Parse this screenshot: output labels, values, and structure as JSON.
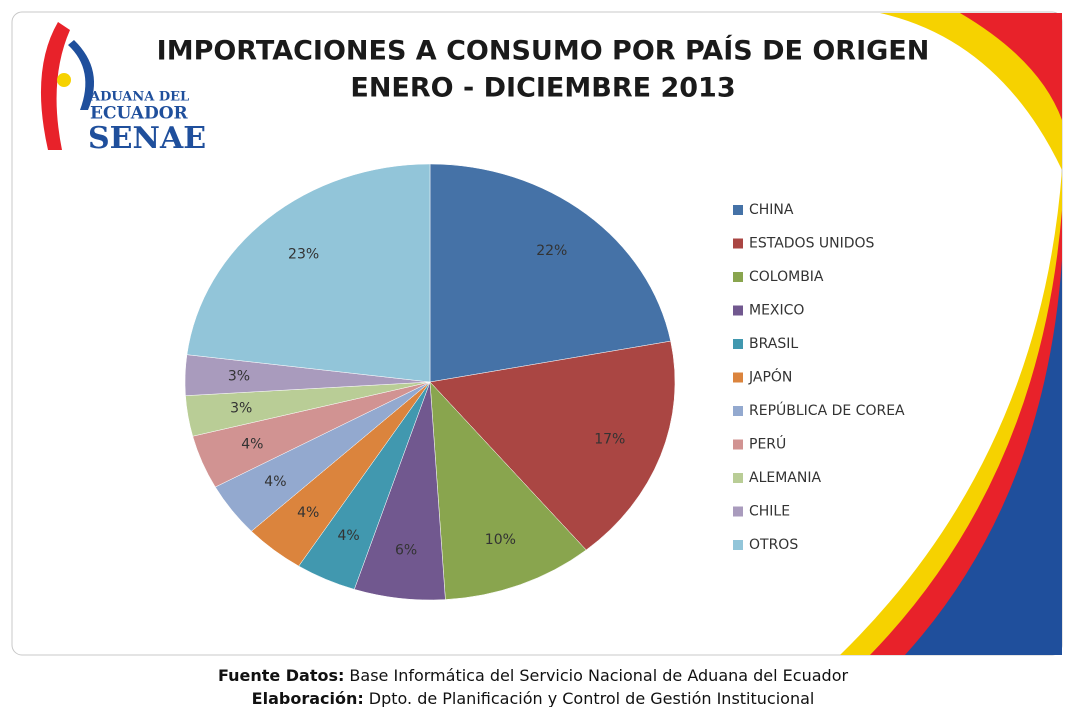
{
  "chart_data": {
    "type": "pie",
    "title": [
      "IMPORTACIONES A CONSUMO POR PAÍS DE ORIGEN",
      "ENERO - DICIEMBRE 2013"
    ],
    "categories": [
      "CHINA",
      "ESTADOS UNIDOS",
      "COLOMBIA",
      "MEXICO",
      "BRASIL",
      "JAPÓN",
      "REPÚBLICA DE COREA",
      "PERÚ",
      "ALEMANIA",
      "CHILE",
      "OTROS"
    ],
    "values": [
      22,
      17,
      10,
      6,
      4,
      4,
      4,
      4,
      3,
      3,
      23
    ],
    "value_labels": [
      "22%",
      "17%",
      "10%",
      "6%",
      "4%",
      "4%",
      "4%",
      "4%",
      "3%",
      "3%",
      "23%"
    ],
    "colors": [
      "#4572a7",
      "#aa4643",
      "#89a54e",
      "#71588f",
      "#4198af",
      "#db843d",
      "#93a9cf",
      "#d19392",
      "#b9cd96",
      "#a99bbd",
      "#92c5d9"
    ],
    "legend": "right"
  },
  "logo": {
    "line1": "ADUANA DEL",
    "line2": "ECUADOR",
    "line3": "SENAE"
  },
  "footer": {
    "source_label": "Fuente Datos:",
    "source": "Base Informática del Servicio Nacional de Aduana del Ecuador",
    "author_label": "Elaboración:",
    "author": "Dpto. de Planificación y Control de Gestión Institucional"
  }
}
